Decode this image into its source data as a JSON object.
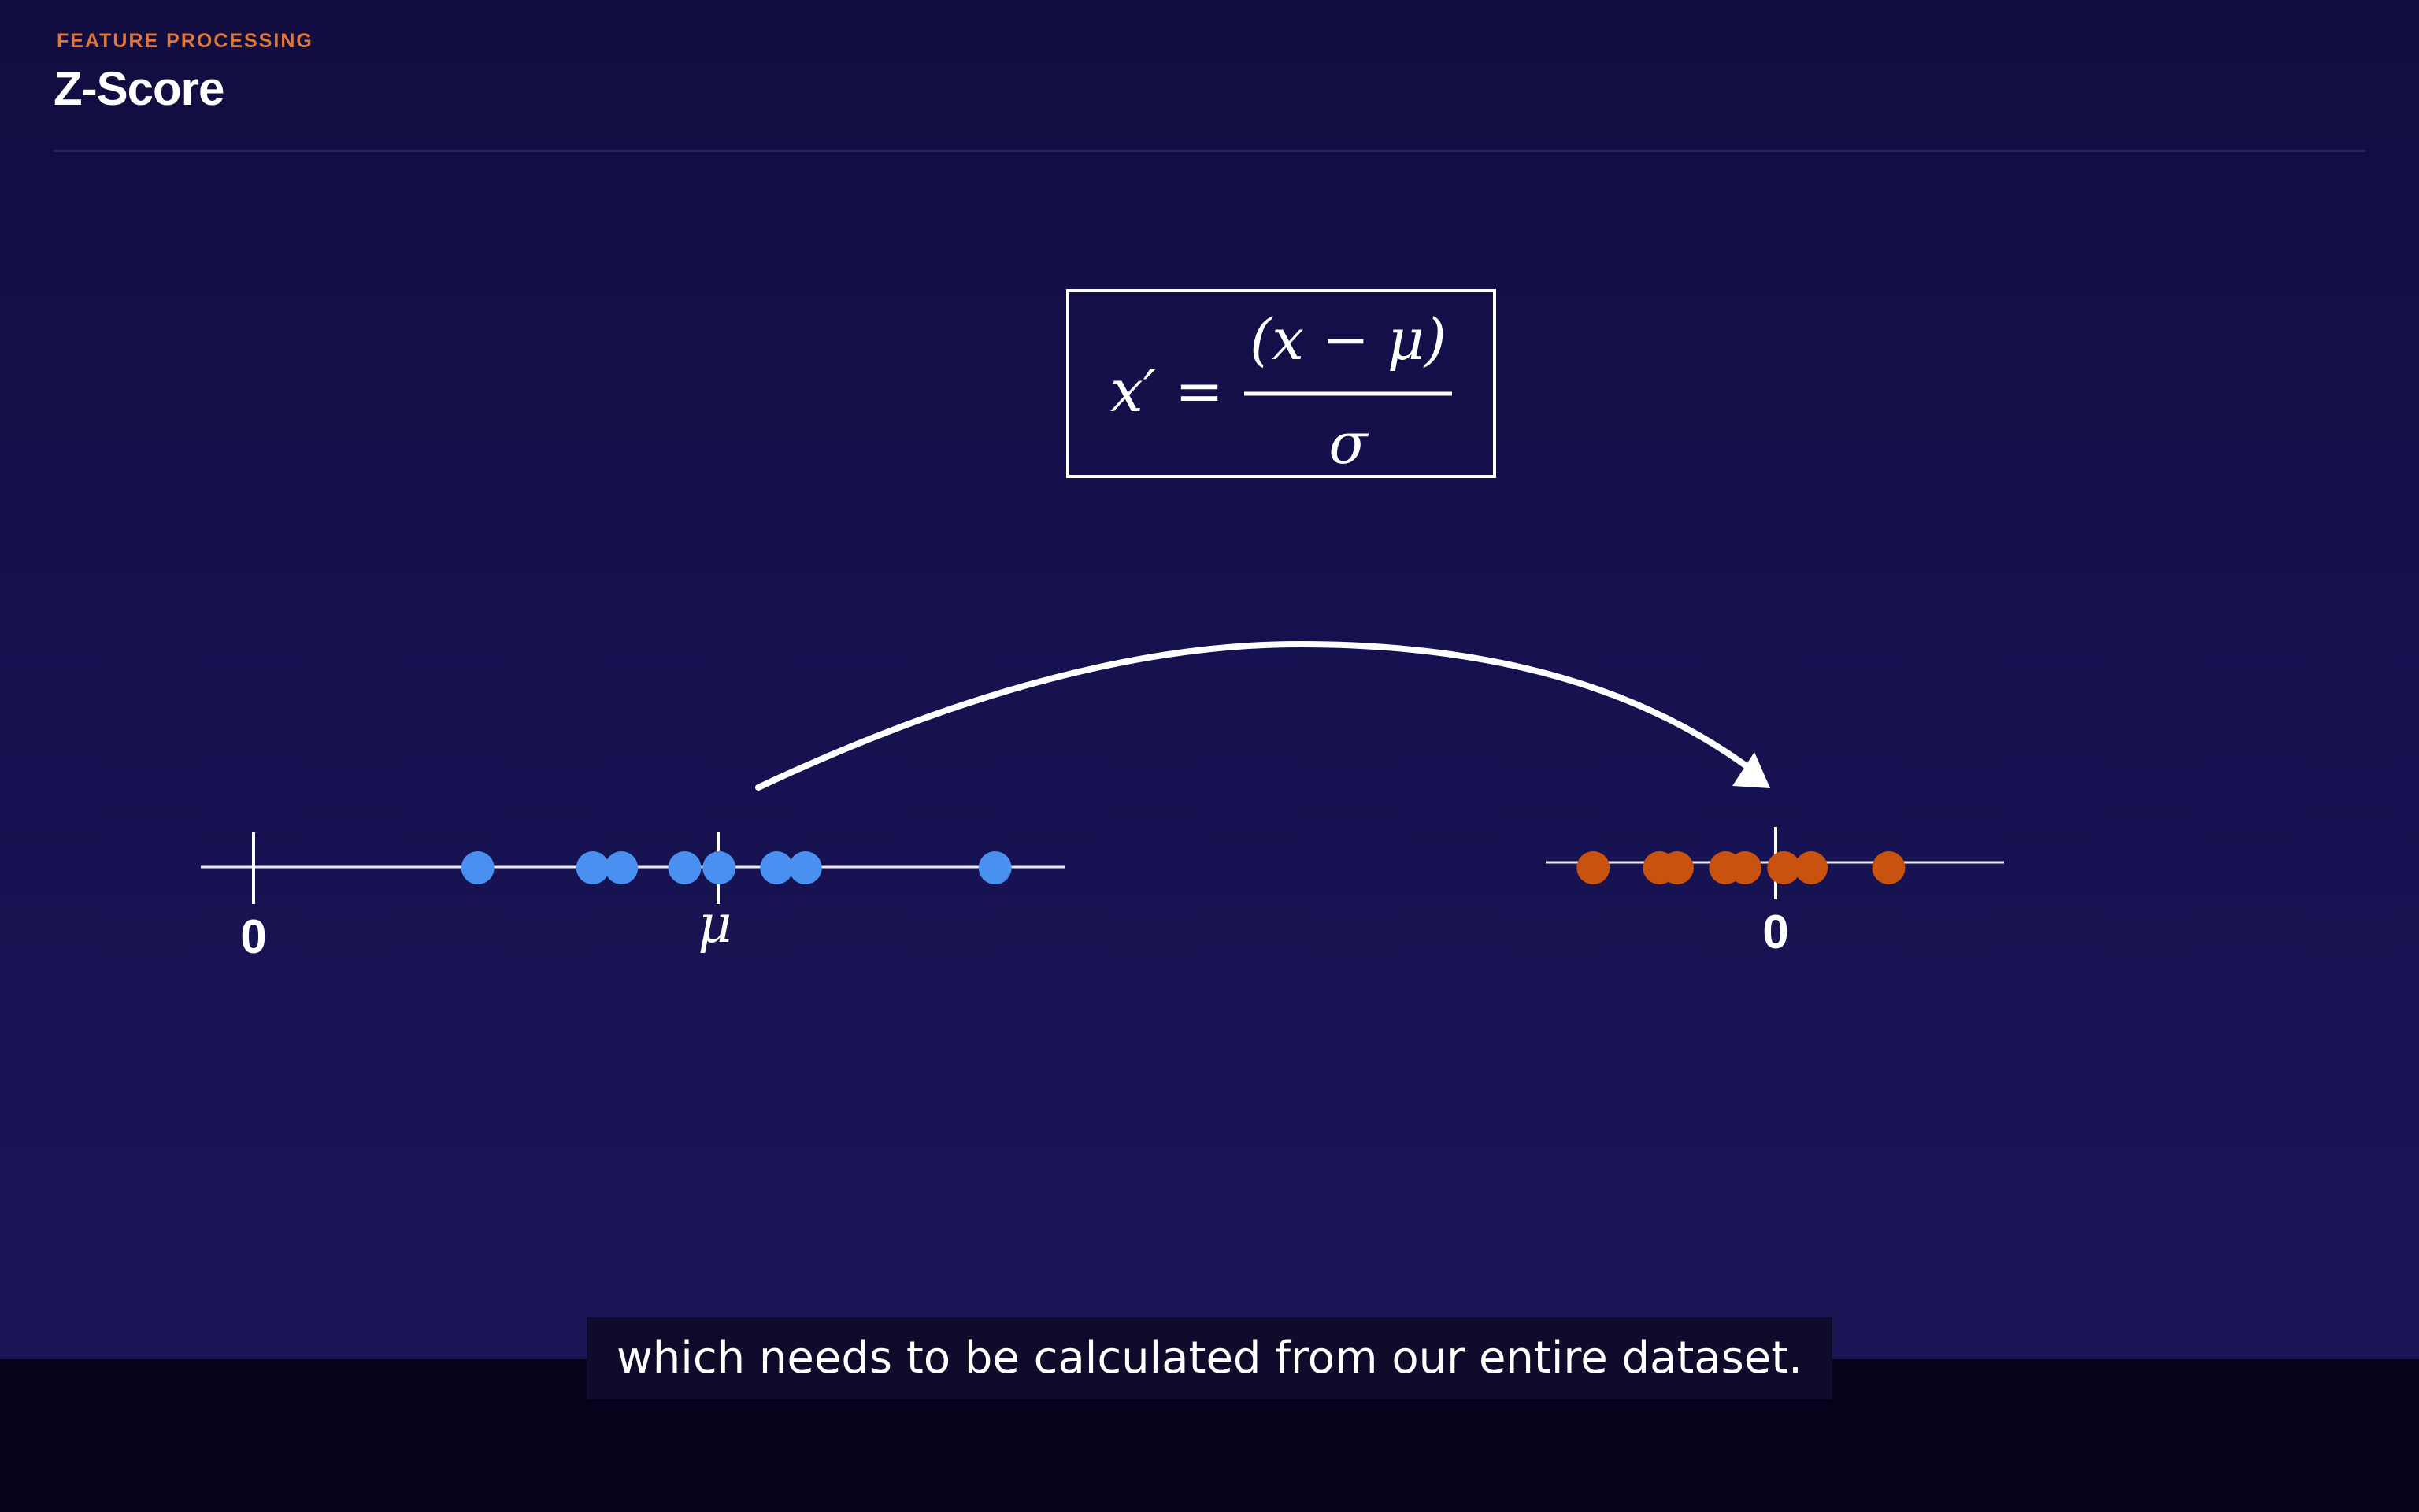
{
  "header": {
    "eyebrow": "FEATURE PROCESSING",
    "title": "Z-Score"
  },
  "formula": {
    "lhs": "x′",
    "equals": "=",
    "numerator": "(x − μ)",
    "denominator": "σ"
  },
  "left_axis": {
    "zero_label": "0",
    "mean_label": "μ",
    "point_color": "#4a90f0",
    "points": [
      0.39,
      0.59,
      0.64,
      0.75,
      0.81,
      0.91,
      0.96,
      1.29
    ],
    "mean_value": 0.81
  },
  "right_axis": {
    "zero_label": "0",
    "point_color": "#c9530e",
    "points": [
      -1.13,
      -0.72,
      -0.61,
      -0.31,
      -0.19,
      0.05,
      0.22,
      0.7
    ],
    "zero_value": 0
  },
  "arrow": {
    "color": "#ffffff",
    "from": "mean",
    "to": "zero"
  },
  "caption": {
    "text": "which needs to be calculated from our entire dataset."
  }
}
